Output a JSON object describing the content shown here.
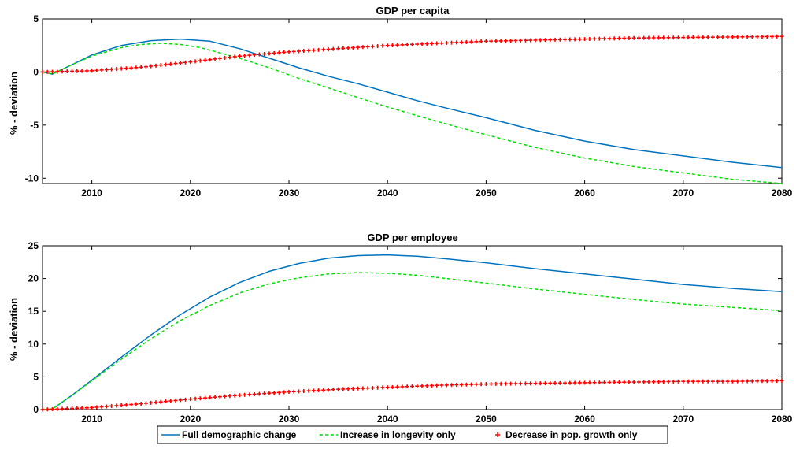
{
  "chart_data": [
    {
      "type": "line",
      "title": "GDP per capita",
      "xlabel": "",
      "ylabel": "% - deviation",
      "xlim": [
        2005,
        2080
      ],
      "ylim": [
        -10.5,
        5
      ],
      "x_ticks": [
        2010,
        2020,
        2030,
        2040,
        2050,
        2060,
        2070,
        2080
      ],
      "y_ticks": [
        -10,
        -5,
        0,
        5
      ],
      "grid": false,
      "series": [
        {
          "name": "Full demographic change",
          "style": "solid",
          "color": "#0072BD",
          "x": [
            2005,
            2006,
            2008,
            2010,
            2013,
            2016,
            2019,
            2022,
            2025,
            2028,
            2031,
            2034,
            2037,
            2040,
            2043,
            2046,
            2050,
            2055,
            2060,
            2065,
            2070,
            2075,
            2080
          ],
          "y": [
            0,
            -0.2,
            0.7,
            1.6,
            2.5,
            2.95,
            3.1,
            2.9,
            2.2,
            1.3,
            0.4,
            -0.4,
            -1.1,
            -1.9,
            -2.7,
            -3.4,
            -4.3,
            -5.5,
            -6.5,
            -7.3,
            -7.9,
            -8.5,
            -9.0
          ]
        },
        {
          "name": "Increase in longevity only",
          "style": "dashed",
          "color": "#00E000",
          "x": [
            2005,
            2006,
            2008,
            2010,
            2013,
            2015,
            2017,
            2019,
            2021,
            2023,
            2025,
            2028,
            2031,
            2034,
            2037,
            2040,
            2043,
            2046,
            2050,
            2055,
            2060,
            2065,
            2070,
            2075,
            2080
          ],
          "y": [
            0,
            -0.2,
            0.7,
            1.5,
            2.3,
            2.6,
            2.7,
            2.6,
            2.3,
            1.8,
            1.3,
            0.4,
            -0.6,
            -1.5,
            -2.4,
            -3.3,
            -4.1,
            -4.9,
            -5.9,
            -7.1,
            -8.1,
            -8.9,
            -9.5,
            -10.1,
            -10.5
          ]
        },
        {
          "name": "Decrease in pop. growth only",
          "style": "plus-markers",
          "color": "#FF0000",
          "x": [
            2005,
            2010,
            2015,
            2020,
            2025,
            2030,
            2035,
            2040,
            2045,
            2050,
            2055,
            2060,
            2065,
            2070,
            2075,
            2080
          ],
          "y": [
            0,
            0.12,
            0.45,
            0.95,
            1.5,
            1.9,
            2.2,
            2.5,
            2.7,
            2.9,
            3.0,
            3.1,
            3.2,
            3.25,
            3.3,
            3.35
          ]
        }
      ]
    },
    {
      "type": "line",
      "title": "GDP per employee",
      "xlabel": "",
      "ylabel": "% - deviation",
      "xlim": [
        2005,
        2080
      ],
      "ylim": [
        0,
        25
      ],
      "x_ticks": [
        2010,
        2020,
        2030,
        2040,
        2050,
        2060,
        2070,
        2080
      ],
      "y_ticks": [
        0,
        5,
        10,
        15,
        20,
        25
      ],
      "grid": false,
      "series": [
        {
          "name": "Full demographic change",
          "style": "solid",
          "color": "#0072BD",
          "x": [
            2005,
            2006,
            2008,
            2010,
            2013,
            2016,
            2019,
            2022,
            2025,
            2028,
            2031,
            2034,
            2037,
            2040,
            2043,
            2046,
            2050,
            2055,
            2060,
            2065,
            2070,
            2075,
            2080
          ],
          "y": [
            0,
            0.1,
            2.2,
            4.5,
            8.0,
            11.4,
            14.5,
            17.2,
            19.4,
            21.1,
            22.3,
            23.1,
            23.5,
            23.6,
            23.4,
            23.0,
            22.4,
            21.5,
            20.7,
            19.9,
            19.1,
            18.5,
            18.0
          ]
        },
        {
          "name": "Increase in longevity only",
          "style": "dashed",
          "color": "#00E000",
          "x": [
            2005,
            2006,
            2008,
            2010,
            2013,
            2016,
            2019,
            2022,
            2025,
            2028,
            2031,
            2034,
            2037,
            2040,
            2043,
            2046,
            2050,
            2055,
            2060,
            2065,
            2070,
            2075,
            2080
          ],
          "y": [
            0,
            0.1,
            2.2,
            4.4,
            7.7,
            10.8,
            13.6,
            15.9,
            17.8,
            19.2,
            20.1,
            20.7,
            20.9,
            20.8,
            20.5,
            20.0,
            19.3,
            18.4,
            17.6,
            16.8,
            16.1,
            15.6,
            15.1
          ]
        },
        {
          "name": "Decrease in pop. growth only",
          "style": "plus-markers",
          "color": "#FF0000",
          "x": [
            2005,
            2010,
            2015,
            2020,
            2025,
            2030,
            2035,
            2040,
            2045,
            2050,
            2055,
            2060,
            2065,
            2070,
            2075,
            2080
          ],
          "y": [
            0,
            0.3,
            0.9,
            1.6,
            2.2,
            2.7,
            3.1,
            3.4,
            3.7,
            3.9,
            4.0,
            4.1,
            4.2,
            4.3,
            4.3,
            4.4
          ]
        }
      ]
    }
  ],
  "legend": {
    "placement": "bottom-center",
    "entries": [
      {
        "label": "Full demographic change",
        "color": "#0072BD",
        "style": "solid"
      },
      {
        "label": "Increase in longevity only",
        "color": "#00E000",
        "style": "dashed"
      },
      {
        "label": "Decrease in pop. growth only",
        "color": "#FF0000",
        "style": "plus-markers"
      }
    ]
  }
}
